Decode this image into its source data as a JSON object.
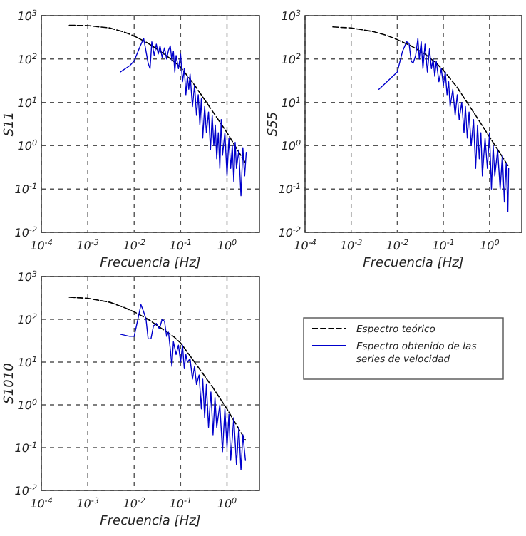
{
  "chart_data": [
    {
      "type": "line",
      "xlabel": "Frecuencia [Hz]",
      "ylabel": "S11",
      "log": "xy",
      "grid": true,
      "xlim": [
        0.0001,
        5
      ],
      "ylim": [
        0.01,
        1000
      ],
      "xticks": [
        {
          "value": 0.0001,
          "label": "10$^{-4}$"
        },
        {
          "value": 0.001,
          "label": "10$^{-3}$"
        },
        {
          "value": 0.01,
          "label": "10$^{-2}$"
        },
        {
          "value": 0.1,
          "label": "10$^{-1}$"
        },
        {
          "value": 1,
          "label": "10$^{0}$"
        }
      ],
      "yticks": [
        {
          "value": 0.01,
          "label": "10$^{-2}$"
        },
        {
          "value": 0.1,
          "label": "10$^{-1}$"
        },
        {
          "value": 1,
          "label": "10$^{0}$"
        },
        {
          "value": 10,
          "label": "10$^{1}$"
        },
        {
          "value": 100,
          "label": "10$^{2}$"
        },
        {
          "value": 1000,
          "label": "10$^{3}$"
        }
      ],
      "series": [
        {
          "color": "#000000",
          "line_style": "dashed",
          "x": [
            0.0004,
            0.001,
            0.003,
            0.006,
            0.01,
            0.02,
            0.04,
            0.07,
            0.1,
            0.2,
            0.5,
            1,
            2.5
          ],
          "values": [
            600,
            590,
            520,
            420,
            340,
            230,
            140,
            90,
            65,
            25,
            6,
            2,
            0.4
          ]
        },
        {
          "color": "#0000cc",
          "line_style": "solid",
          "x": [
            0.005,
            0.008,
            0.01,
            0.013,
            0.016,
            0.018,
            0.02,
            0.022,
            0.024,
            0.027,
            0.03,
            0.033,
            0.036,
            0.04,
            0.045,
            0.05,
            0.055,
            0.06,
            0.065,
            0.07,
            0.075,
            0.08,
            0.09,
            0.1,
            0.11,
            0.12,
            0.13,
            0.14,
            0.15,
            0.16,
            0.18,
            0.2,
            0.22,
            0.24,
            0.26,
            0.28,
            0.3,
            0.33,
            0.36,
            0.4,
            0.44,
            0.48,
            0.52,
            0.56,
            0.6,
            0.65,
            0.7,
            0.75,
            0.8,
            0.9,
            1.0,
            1.1,
            1.2,
            1.3,
            1.4,
            1.5,
            1.6,
            1.8,
            2.0,
            2.2,
            2.4,
            2.6
          ],
          "values": [
            50,
            70,
            90,
            180,
            300,
            150,
            80,
            60,
            250,
            120,
            220,
            130,
            200,
            110,
            180,
            100,
            160,
            200,
            90,
            150,
            50,
            120,
            60,
            130,
            30,
            60,
            15,
            40,
            20,
            45,
            8,
            25,
            5,
            15,
            3,
            12,
            1.5,
            8,
            2,
            6,
            0.8,
            5,
            1,
            3,
            0.5,
            2,
            0.3,
            4,
            0.6,
            2,
            0.2,
            1.5,
            0.3,
            1,
            0.15,
            1.2,
            0.3,
            0.8,
            0.07,
            0.9,
            0.2,
            0.7
          ]
        }
      ]
    },
    {
      "type": "line",
      "xlabel": "Frecuencia [Hz]",
      "ylabel": "S55",
      "log": "xy",
      "grid": true,
      "xlim": [
        0.0001,
        5
      ],
      "ylim": [
        0.01,
        1000
      ],
      "xticks": [
        {
          "value": 0.0001,
          "label": "10$^{-4}$"
        },
        {
          "value": 0.001,
          "label": "10$^{-3}$"
        },
        {
          "value": 0.01,
          "label": "10$^{-2}$"
        },
        {
          "value": 0.1,
          "label": "10$^{-1}$"
        },
        {
          "value": 1,
          "label": "10$^{0}$"
        }
      ],
      "yticks": [
        {
          "value": 0.01,
          "label": "10$^{-2}$"
        },
        {
          "value": 0.1,
          "label": "10$^{-1}$"
        },
        {
          "value": 1,
          "label": "10$^{0}$"
        },
        {
          "value": 10,
          "label": "10$^{1}$"
        },
        {
          "value": 100,
          "label": "10$^{2}$"
        },
        {
          "value": 1000,
          "label": "10$^{3}$"
        }
      ],
      "series": [
        {
          "color": "#000000",
          "line_style": "dashed",
          "x": [
            0.0004,
            0.001,
            0.003,
            0.006,
            0.01,
            0.02,
            0.04,
            0.07,
            0.1,
            0.2,
            0.5,
            1,
            2.5
          ],
          "values": [
            550,
            520,
            430,
            350,
            280,
            200,
            130,
            80,
            55,
            22,
            5,
            1.6,
            0.35
          ]
        },
        {
          "color": "#0000cc",
          "line_style": "solid",
          "x": [
            0.004,
            0.007,
            0.01,
            0.013,
            0.016,
            0.018,
            0.02,
            0.022,
            0.025,
            0.028,
            0.03,
            0.033,
            0.036,
            0.04,
            0.045,
            0.05,
            0.055,
            0.06,
            0.065,
            0.07,
            0.08,
            0.09,
            0.1,
            0.11,
            0.12,
            0.13,
            0.14,
            0.16,
            0.18,
            0.2,
            0.22,
            0.25,
            0.28,
            0.3,
            0.33,
            0.36,
            0.4,
            0.45,
            0.5,
            0.55,
            0.6,
            0.65,
            0.7,
            0.8,
            0.9,
            1.0,
            1.1,
            1.2,
            1.3,
            1.5,
            1.7,
            1.9,
            2.1,
            2.3,
            2.5,
            2.6
          ],
          "values": [
            20,
            35,
            50,
            150,
            250,
            230,
            90,
            80,
            120,
            300,
            100,
            250,
            60,
            220,
            50,
            170,
            60,
            100,
            40,
            90,
            30,
            60,
            25,
            50,
            15,
            30,
            8,
            20,
            5,
            15,
            4,
            10,
            2,
            8,
            1.5,
            6,
            1,
            4,
            0.3,
            3,
            0.5,
            2,
            0.2,
            1.5,
            0.3,
            2,
            0.1,
            1,
            0.2,
            0.8,
            0.1,
            0.6,
            0.05,
            0.4,
            0.03,
            0.3
          ]
        }
      ]
    },
    {
      "type": "line",
      "xlabel": "Frecuencia [Hz]",
      "ylabel": "S1010",
      "log": "xy",
      "grid": true,
      "legend": "right",
      "xlim": [
        0.0001,
        5
      ],
      "ylim": [
        0.01,
        1000
      ],
      "xticks": [
        {
          "value": 0.0001,
          "label": "10$^{-4}$"
        },
        {
          "value": 0.001,
          "label": "10$^{-3}$"
        },
        {
          "value": 0.01,
          "label": "10$^{-2}$"
        },
        {
          "value": 0.1,
          "label": "10$^{-1}$"
        },
        {
          "value": 1,
          "label": "10$^{0}$"
        }
      ],
      "yticks": [
        {
          "value": 0.01,
          "label": "10$^{-2}$"
        },
        {
          "value": 0.1,
          "label": "10$^{-1}$"
        },
        {
          "value": 1,
          "label": "10$^{0}$"
        },
        {
          "value": 10,
          "label": "10$^{1}$"
        },
        {
          "value": 100,
          "label": "10$^{2}$"
        },
        {
          "value": 1000,
          "label": "10$^{3}$"
        }
      ],
      "series": [
        {
          "name": "Espectro teórico",
          "color": "#000000",
          "line_style": "dashed",
          "x": [
            0.0004,
            0.001,
            0.003,
            0.006,
            0.01,
            0.02,
            0.04,
            0.07,
            0.1,
            0.2,
            0.5,
            1,
            2.5
          ],
          "values": [
            330,
            310,
            250,
            190,
            150,
            100,
            60,
            40,
            28,
            10,
            2.5,
            0.8,
            0.15
          ]
        },
        {
          "name": "Espectro obtenido de las series de velocidad",
          "color": "#0000cc",
          "line_style": "solid",
          "x": [
            0.005,
            0.008,
            0.01,
            0.012,
            0.014,
            0.016,
            0.018,
            0.02,
            0.023,
            0.026,
            0.03,
            0.035,
            0.04,
            0.045,
            0.05,
            0.055,
            0.06,
            0.065,
            0.07,
            0.08,
            0.09,
            0.1,
            0.11,
            0.12,
            0.13,
            0.14,
            0.16,
            0.18,
            0.2,
            0.22,
            0.25,
            0.28,
            0.3,
            0.33,
            0.36,
            0.4,
            0.45,
            0.5,
            0.55,
            0.6,
            0.7,
            0.8,
            0.9,
            1.0,
            1.1,
            1.2,
            1.4,
            1.6,
            1.8,
            2.0,
            2.2,
            2.5
          ],
          "values": [
            45,
            40,
            40,
            100,
            220,
            150,
            100,
            35,
            35,
            70,
            80,
            60,
            100,
            90,
            40,
            50,
            20,
            8,
            30,
            15,
            25,
            10,
            25,
            7,
            15,
            10,
            12,
            4,
            8,
            3,
            5,
            0.8,
            4,
            0.5,
            3,
            0.3,
            2,
            0.2,
            1.5,
            0.3,
            1,
            0.08,
            0.8,
            0.1,
            0.6,
            0.05,
            0.5,
            0.04,
            0.3,
            0.03,
            0.2,
            0.05
          ]
        }
      ]
    }
  ]
}
